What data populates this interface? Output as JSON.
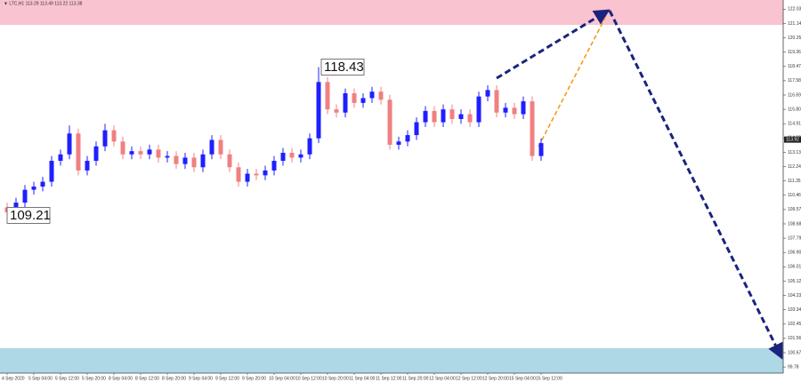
{
  "chart_data": {
    "type": "candlestick",
    "header": "▼ LTC,H1 113.29 113.49 113.22 113.38",
    "categories": [
      "4 Sep 2020",
      null,
      null,
      "5 Sep 04:00",
      null,
      null,
      "5 Sep 12:00",
      null,
      null,
      "5 Sep 20:00",
      null,
      null,
      "8 Sep 04:00",
      null,
      null,
      "8 Sep 12:00",
      null,
      null,
      "8 Sep 20:00",
      null,
      null,
      "9 Sep 04:00",
      null,
      null,
      "9 Sep 12:00",
      null,
      null,
      "9 Sep 20:00",
      null,
      null,
      "10 Sep 04:00",
      null,
      null,
      "10 Sep 12:00",
      null,
      null,
      "10 Sep 20:00",
      null,
      null,
      "11 Sep 04:00",
      null,
      null,
      "11 Sep 12:00",
      null,
      null,
      "11 Sep 20:00",
      null,
      null,
      "12 Sep 04:00",
      null,
      null,
      "12 Sep 12:00",
      null,
      null,
      "12 Sep 20:00",
      null,
      null,
      "15 Sep 04:00",
      null,
      null,
      "15 Sep 12:00"
    ],
    "open": [
      109.7,
      109.4,
      110.0,
      110.8,
      111.0,
      111.3,
      112.6,
      113.0,
      114.3,
      112.0,
      112.6,
      113.5,
      114.5,
      113.8,
      113.0,
      113.2,
      113.0,
      113.3,
      112.8,
      112.9,
      112.4,
      112.8,
      112.2,
      113.0,
      113.9,
      113.0,
      112.2,
      111.3,
      111.8,
      111.7,
      112.0,
      112.6,
      113.1,
      112.8,
      113.0,
      114.0,
      117.5,
      115.8,
      115.6,
      116.8,
      116.2,
      116.5,
      116.9,
      116.4,
      113.6,
      113.8,
      114.2,
      115.0,
      115.7,
      115.0,
      115.8,
      115.2,
      115.5,
      115.0,
      116.6,
      117.0,
      115.6,
      115.9,
      115.5,
      116.3,
      112.9
    ],
    "high": [
      110.0,
      110.3,
      111.1,
      111.3,
      111.6,
      112.9,
      113.3,
      114.8,
      114.6,
      112.9,
      113.8,
      114.9,
      114.8,
      114.1,
      113.5,
      113.5,
      113.6,
      113.6,
      113.2,
      113.2,
      113.1,
      113.1,
      113.3,
      114.2,
      114.2,
      113.3,
      112.5,
      112.1,
      112.1,
      112.3,
      112.9,
      113.4,
      113.4,
      113.3,
      114.3,
      118.43,
      117.8,
      116.1,
      117.1,
      117.1,
      116.8,
      117.2,
      117.2,
      116.7,
      114.1,
      114.5,
      115.3,
      116.0,
      116.0,
      116.1,
      116.1,
      115.8,
      115.8,
      116.9,
      117.3,
      117.3,
      116.2,
      116.2,
      116.6,
      116.6,
      114.0
    ],
    "low": [
      109.21,
      109.1,
      109.7,
      110.5,
      110.7,
      111.0,
      112.3,
      112.7,
      111.7,
      111.7,
      112.3,
      113.2,
      113.5,
      112.7,
      112.7,
      112.7,
      112.7,
      112.5,
      112.5,
      112.1,
      112.1,
      111.9,
      111.9,
      112.7,
      112.7,
      111.9,
      111.0,
      111.0,
      111.4,
      111.4,
      111.7,
      112.3,
      112.5,
      112.5,
      112.7,
      113.7,
      115.5,
      115.3,
      115.3,
      115.9,
      115.9,
      116.2,
      116.1,
      113.3,
      113.3,
      113.5,
      113.9,
      114.7,
      114.7,
      114.7,
      114.9,
      114.9,
      114.7,
      114.7,
      116.3,
      115.3,
      115.3,
      115.2,
      115.2,
      112.6,
      112.6
    ],
    "close": [
      109.4,
      110.0,
      110.8,
      111.0,
      111.3,
      112.6,
      113.0,
      114.3,
      112.0,
      112.6,
      113.5,
      114.5,
      113.8,
      113.0,
      113.2,
      113.0,
      113.3,
      112.8,
      112.9,
      112.4,
      112.8,
      112.2,
      113.0,
      113.9,
      113.0,
      112.2,
      111.3,
      111.8,
      111.7,
      112.0,
      112.6,
      113.1,
      112.8,
      113.0,
      114.0,
      117.5,
      115.8,
      115.6,
      116.8,
      116.2,
      116.5,
      116.9,
      116.4,
      113.6,
      113.8,
      114.2,
      115.0,
      115.7,
      115.0,
      115.8,
      115.2,
      115.5,
      115.0,
      116.6,
      117.0,
      115.6,
      115.9,
      115.5,
      116.3,
      112.9,
      113.7
    ],
    "up_color": "#1f1fff",
    "down_color": "#f08080",
    "ylim": [
      99.4,
      122.6
    ],
    "yticks": [
      122.03,
      121.14,
      120.25,
      119.36,
      118.47,
      117.58,
      116.69,
      {
        "value": 115.8,
        "label": "115.80"
      },
      114.91,
      114.02,
      113.13,
      112.24,
      111.35,
      110.46,
      109.57,
      108.68,
      107.79,
      {
        "value": 106.9,
        "label": "106.90"
      },
      106.01,
      105.12,
      104.23,
      103.34,
      102.45,
      101.56,
      100.67,
      99.78
    ],
    "current_price": 113.92
  }
}
